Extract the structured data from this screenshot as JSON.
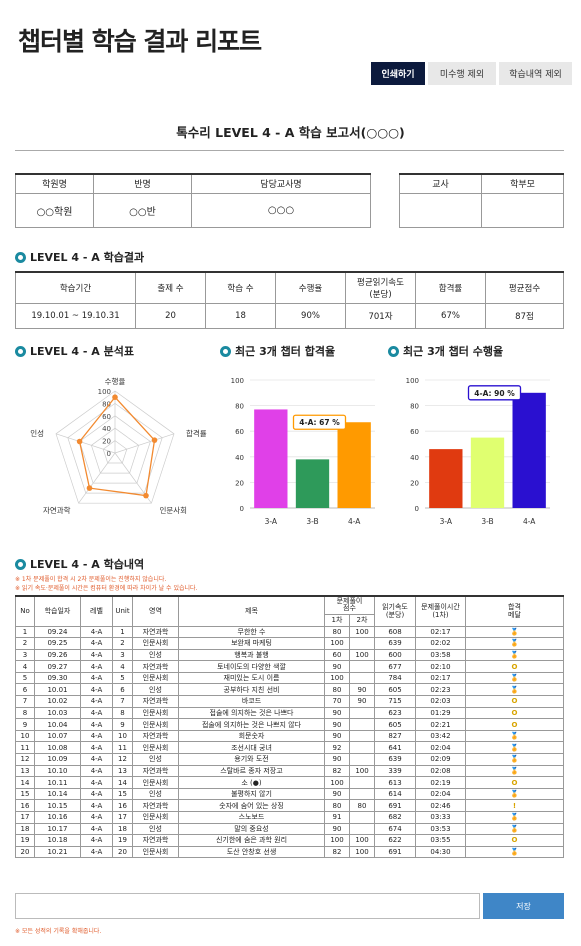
{
  "page_title": "챕터별 학습 결과 리포트",
  "tabs": [
    {
      "label": "인쇄하기",
      "active": true
    },
    {
      "label": "미수행 제외",
      "active": false
    },
    {
      "label": "학습내역 제외",
      "active": false
    }
  ],
  "report_title": "톡수리 LEVEL 4 - A 학습 보고서(○○○)",
  "info": {
    "headers": [
      "학원명",
      "반명",
      "담당교사명"
    ],
    "values": [
      "○○학원",
      "○○반",
      "○○○"
    ],
    "sign_headers": [
      "교사",
      "학부모"
    ]
  },
  "result_section": {
    "title": "LEVEL 4 - A 학습결과",
    "headers": [
      "학습기간",
      "출제 수",
      "학습 수",
      "수행율",
      "평균읽기속도\n(분당)",
      "합격률",
      "평균점수"
    ],
    "values": [
      "19.10.01 ~ 19.10.31",
      "20",
      "18",
      "90%",
      "701자",
      "67%",
      "87점"
    ]
  },
  "radar": {
    "title": "LEVEL 4 - A 분석표",
    "labels": [
      "수행율",
      "합격률",
      "인문사회",
      "자연과학",
      "인성"
    ],
    "ticks": [
      "100",
      "80",
      "60",
      "40",
      "20",
      "0"
    ],
    "values": [
      90,
      67,
      85,
      70,
      60
    ],
    "color": "#f28a30"
  },
  "chart_data": [
    {
      "type": "bar",
      "title": "최근 3개 챕터 합격율",
      "categories": [
        "3-A",
        "3-B",
        "4-A"
      ],
      "values": [
        77,
        38,
        67
      ],
      "colors": [
        "#e040e8",
        "#2e9a5a",
        "#ff9a00"
      ],
      "ylim": [
        0,
        100
      ],
      "yticks": [
        "0",
        "20",
        "40",
        "60",
        "80",
        "100"
      ],
      "tooltip": "4-A: 67 %"
    },
    {
      "type": "bar",
      "title": "최근 3개 챕터 수행율",
      "categories": [
        "3-A",
        "3-B",
        "4-A"
      ],
      "values": [
        46,
        55,
        90
      ],
      "colors": [
        "#e03a10",
        "#e0ff70",
        "#2a10d0"
      ],
      "ylim": [
        0,
        100
      ],
      "yticks": [
        "0",
        "20",
        "40",
        "60",
        "80",
        "100"
      ],
      "tooltip": "4-A: 90 %"
    }
  ],
  "history": {
    "title": "LEVEL 4 - A 학습내역",
    "notes": [
      "※ 1차 문제풀이 합격 시 2차 문제풀이는 진행하지 않습니다.",
      "※ 읽기 속도·문제풀이 시간은 컴퓨터 환경에 따라 차이가 날 수 있습니다."
    ],
    "headers": {
      "no": "No",
      "date": "학습일자",
      "level": "레벨",
      "unit": "Unit",
      "area": "영역",
      "title": "제목",
      "score": "문제풀이\n점수",
      "first": "1차",
      "second": "2차",
      "speed": "읽기속도\n(분당)",
      "time": "문제풀이시간\n(1차)",
      "medal": "합격\n메달"
    },
    "rows": [
      [
        "1",
        "09.24",
        "4-A",
        "1",
        "자연과학",
        "무한한 수",
        "80",
        "100",
        "608",
        "02:17",
        "🏅"
      ],
      [
        "2",
        "09.25",
        "4-A",
        "2",
        "인문사회",
        "보완재 마케팅",
        "100",
        "",
        "639",
        "02:02",
        "🏅"
      ],
      [
        "3",
        "09.26",
        "4-A",
        "3",
        "인성",
        "행복과 불행",
        "60",
        "100",
        "600",
        "03:58",
        "🏅"
      ],
      [
        "4",
        "09.27",
        "4-A",
        "4",
        "자연과학",
        "토네이도의 다양한 색깔",
        "90",
        "",
        "677",
        "02:10",
        "O"
      ],
      [
        "5",
        "09.30",
        "4-A",
        "5",
        "인문사회",
        "재미있는 도시 이름",
        "100",
        "",
        "784",
        "02:17",
        "🏅"
      ],
      [
        "6",
        "10.01",
        "4-A",
        "6",
        "인성",
        "공부하다 지친 선비",
        "80",
        "90",
        "605",
        "02:23",
        "🏅"
      ],
      [
        "7",
        "10.02",
        "4-A",
        "7",
        "자연과학",
        "바코드",
        "70",
        "90",
        "715",
        "02:03",
        "O"
      ],
      [
        "8",
        "10.03",
        "4-A",
        "8",
        "인문사회",
        "접술에 의지하는 것은 나쁘다",
        "90",
        "",
        "623",
        "01:29",
        "O"
      ],
      [
        "9",
        "10.04",
        "4-A",
        "9",
        "인문사회",
        "접술에 의지하는 것은 나쁘지 않다",
        "90",
        "",
        "605",
        "02:21",
        "O"
      ],
      [
        "10",
        "10.07",
        "4-A",
        "10",
        "자연과학",
        "회문숫자",
        "90",
        "",
        "827",
        "03:42",
        "🏅"
      ],
      [
        "11",
        "10.08",
        "4-A",
        "11",
        "인문사회",
        "조선시대 궁녀",
        "92",
        "",
        "641",
        "02:04",
        "🏅"
      ],
      [
        "12",
        "10.09",
        "4-A",
        "12",
        "인성",
        "용기와 도전",
        "90",
        "",
        "639",
        "02:09",
        "🏅"
      ],
      [
        "13",
        "10.10",
        "4-A",
        "13",
        "자연과학",
        "스탈바르 종자 저장고",
        "82",
        "100",
        "339",
        "02:08",
        "🏅"
      ],
      [
        "14",
        "10.11",
        "4-A",
        "14",
        "인문사회",
        "소 (●)",
        "100",
        "",
        "613",
        "02:19",
        "O"
      ],
      [
        "15",
        "10.14",
        "4-A",
        "15",
        "인성",
        "불평하지 않기",
        "90",
        "",
        "614",
        "02:04",
        "🏅"
      ],
      [
        "16",
        "10.15",
        "4-A",
        "16",
        "자연과학",
        "숫자에 숨어 있는 상징",
        "80",
        "80",
        "691",
        "02:46",
        "!"
      ],
      [
        "17",
        "10.16",
        "4-A",
        "17",
        "인문사회",
        "스노보드",
        "91",
        "",
        "682",
        "03:33",
        "🏅"
      ],
      [
        "18",
        "10.17",
        "4-A",
        "18",
        "인성",
        "말의 중요성",
        "90",
        "",
        "674",
        "03:53",
        "🏅"
      ],
      [
        "19",
        "10.18",
        "4-A",
        "19",
        "자연과학",
        "신기한에 숨은 과학 원리",
        "100",
        "100",
        "622",
        "03:55",
        "O"
      ],
      [
        "20",
        "10.21",
        "4-A",
        "20",
        "인문사회",
        "도산 안창호 선생",
        "82",
        "100",
        "691",
        "04:30",
        "🏅"
      ]
    ]
  },
  "memo_placeholder": "",
  "save_label": "저장",
  "footer_note": "※ 모든 성적의 기록을 확해줍니다."
}
